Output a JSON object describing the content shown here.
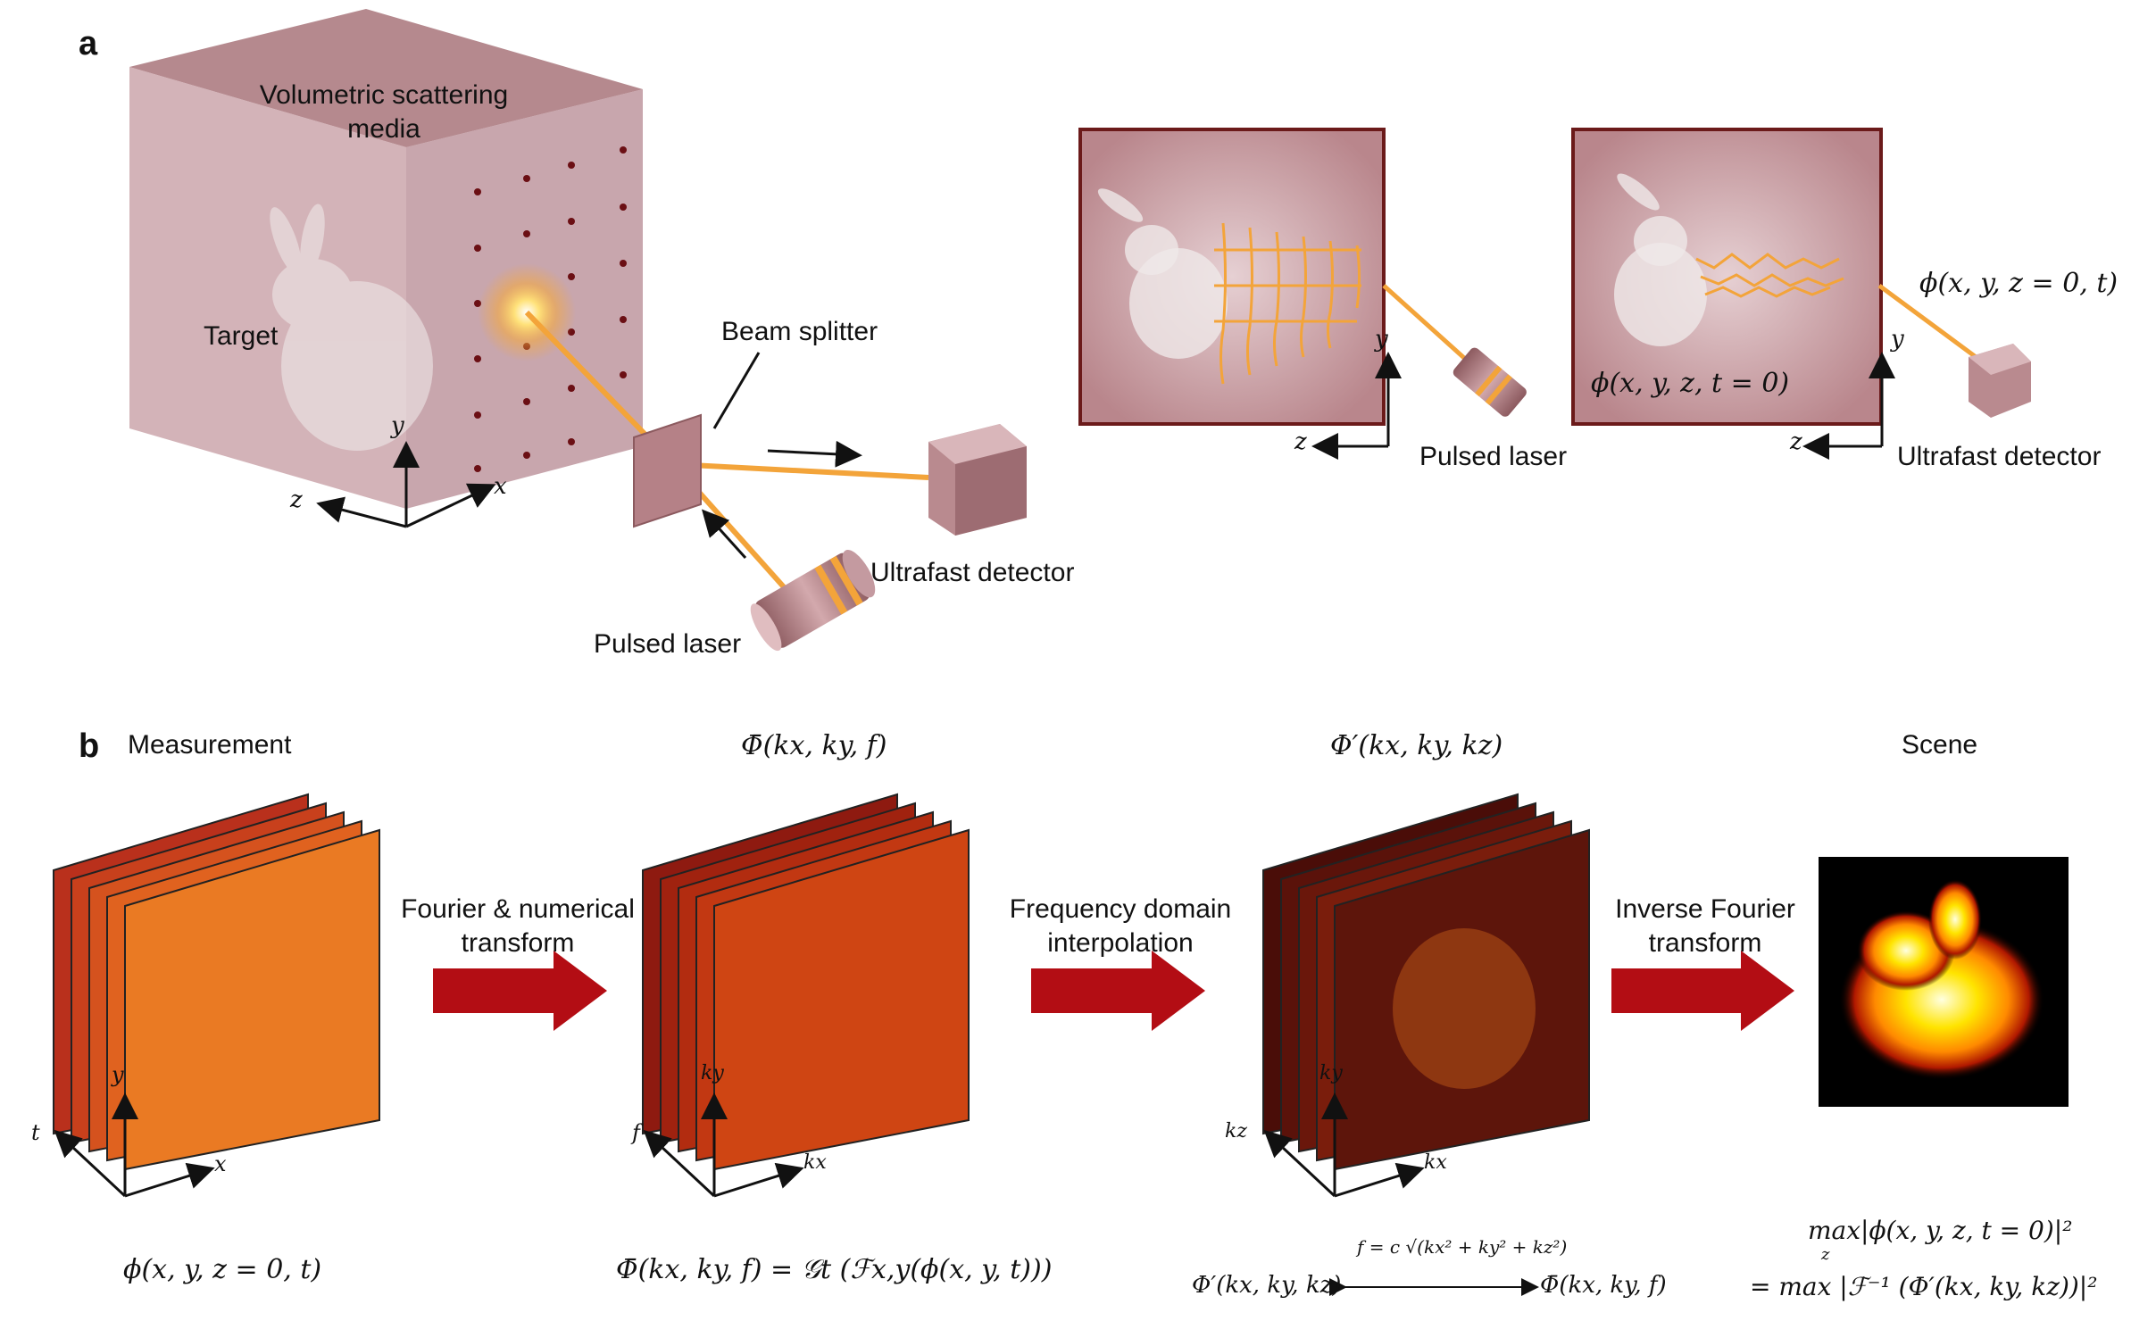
{
  "panel_a": {
    "letter": "a",
    "cube_label": "Volumetric scattering\nmedia",
    "target_label": "Target",
    "beam_splitter_label": "Beam splitter",
    "detector_label": "Ultrafast detector",
    "laser_label": "Pulsed laser",
    "axis_x": "x",
    "axis_y": "y",
    "axis_z": "z",
    "inset1": {
      "laser_label": "Pulsed laser",
      "axis_y": "y",
      "axis_z": "z"
    },
    "inset2": {
      "detector_label": "Ultrafast detector",
      "field_boundary": "ϕ(x, y, z = 0, t)",
      "field_initial": "ϕ(x, y, z, t = 0)",
      "axis_y": "y",
      "axis_z": "z"
    }
  },
  "panel_b": {
    "letter": "b",
    "measurement_title": "Measurement",
    "fourier_title": "Φ̄(kx, ky, f)",
    "interp_title": "Φ′(kx, ky, kz)",
    "scene_title": "Scene",
    "arrow1_label": "Fourier & numerical\ntransform",
    "arrow2_label": "Frequency domain\ninterpolation",
    "arrow3_label": "Inverse Fourier\ntransform",
    "stack1_axes": {
      "t": "t",
      "y": "y",
      "x": "x"
    },
    "stack2_axes": {
      "f": "f",
      "ky": "ky",
      "kx": "kx"
    },
    "stack3_axes": {
      "kz": "kz",
      "ky": "ky",
      "kx": "kx"
    },
    "eq1": "ϕ(x, y, z = 0, t)",
    "eq2": "Φ̄(kx, ky, f) = 𝒢t (ℱx,y(ϕ(x, y, t)))",
    "eq3_left": "Φ′(kx, ky, kz)",
    "eq3_over": "f = c √(kx² + ky² + kz²)",
    "eq3_right": "Φ̄(kx, ky, f)",
    "eq4_line1": "max|ϕ(x, y, z, t = 0)|²",
    "eq4_line2": "= max |ℱ⁻¹ (Φ′(kx, ky, kz))|²",
    "eq4_sub": "z"
  },
  "colors": {
    "media": "#b98a8f",
    "beam": "#f3a43a",
    "arrow_red": "#b30d14",
    "frame_dark": "#6b1a1a"
  }
}
